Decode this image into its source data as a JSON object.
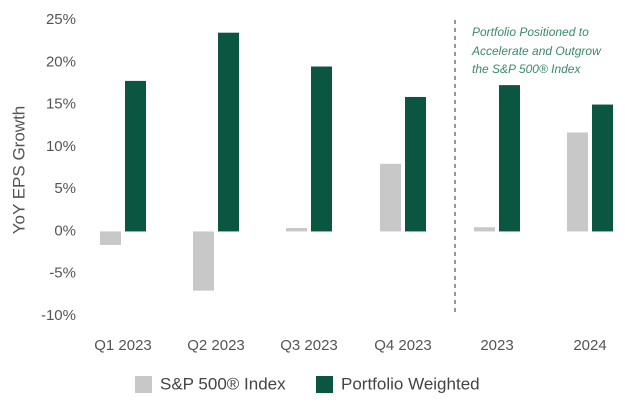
{
  "chart_data": {
    "type": "bar",
    "y_label": "YoY EPS Growth",
    "annotation": [
      "Portfolio Positioned to",
      "Accelerate and Outgrow",
      "the S&P 500® Index"
    ],
    "categories": [
      "Q1 2023",
      "Q2 2023",
      "Q3 2023",
      "Q4 2023",
      "2023",
      "2024"
    ],
    "series": [
      {
        "name": "S&P 500® Index",
        "color": "#c8c8c8",
        "values": [
          -1.6,
          -7.0,
          0.4,
          8.0,
          0.5,
          11.7
        ]
      },
      {
        "name": "Portfolio Weighted",
        "color": "#0b5640",
        "values": [
          17.8,
          23.5,
          19.5,
          15.9,
          17.3,
          15.0
        ]
      }
    ],
    "ylim": [
      -10,
      25
    ],
    "yticks": [
      {
        "value": -10,
        "label": "-10%"
      },
      {
        "value": -5,
        "label": "-5%"
      },
      {
        "value": 0,
        "label": "0%"
      },
      {
        "value": 5,
        "label": "5%"
      },
      {
        "value": 10,
        "label": "10%"
      },
      {
        "value": 15,
        "label": "15%"
      },
      {
        "value": 20,
        "label": "20%"
      },
      {
        "value": 25,
        "label": "25%"
      }
    ],
    "legend": "bottom"
  }
}
